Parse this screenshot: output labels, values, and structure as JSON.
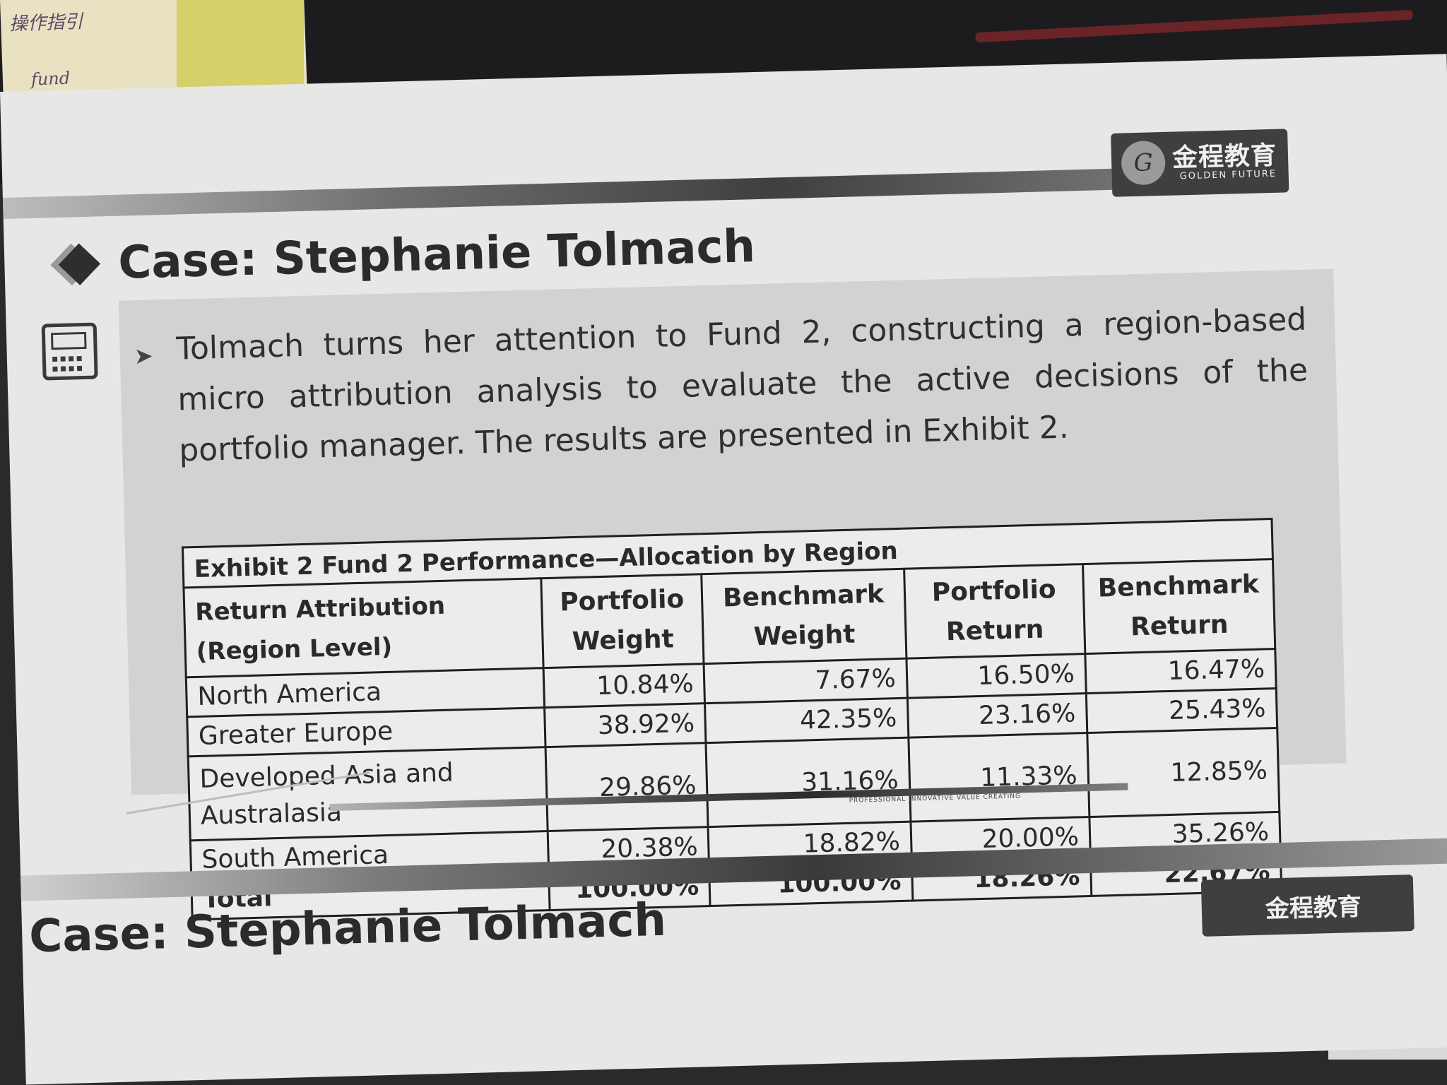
{
  "note": {
    "line1": "操作指引",
    "line2": "fund"
  },
  "logo": {
    "cn": "金程教育",
    "en": "GOLDEN FUTURE"
  },
  "title": "Case: Stephanie Tolmach",
  "paragraph": "Tolmach turns her attention to Fund 2, constructing a region-based micro attribution analysis to evaluate the active decisions of the portfolio manager. The results are presented in Exhibit 2.",
  "exhibit": {
    "caption": "Exhibit 2 Fund 2 Performance—Allocation by Region",
    "headers": [
      "Return Attribution (Region Level)",
      "Portfolio Weight",
      "Benchmark Weight",
      "Portfolio Return",
      "Benchmark Return"
    ],
    "rows": [
      [
        "North America",
        "10.84%",
        "7.67%",
        "16.50%",
        "16.47%"
      ],
      [
        "Greater Europe",
        "38.92%",
        "42.35%",
        "23.16%",
        "25.43%"
      ],
      [
        "Developed Asia and Australasia",
        "29.86%",
        "31.16%",
        "11.33%",
        "12.85%"
      ],
      [
        "South America",
        "20.38%",
        "18.82%",
        "20.00%",
        "35.26%"
      ],
      [
        "Total",
        "100.00%",
        "100.00%",
        "18.26%",
        "22.67%"
      ]
    ]
  },
  "footer": {
    "tagline": "PROFESSIONAL INNOVATIVE VALUE CREATING"
  },
  "next_page": {
    "title": "Case: Stephanie Tolmach",
    "logo": "金程教育"
  }
}
